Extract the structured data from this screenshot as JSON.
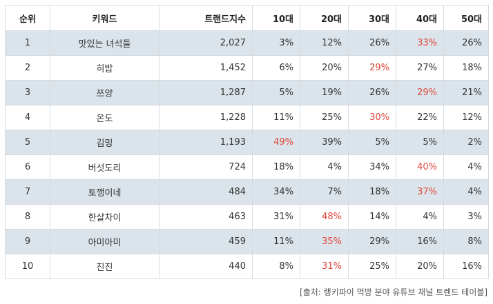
{
  "table": {
    "headers": [
      "순위",
      "키워드",
      "트랜드지수",
      "10대",
      "20대",
      "30대",
      "40대",
      "50대"
    ],
    "rows": [
      {
        "rank": "1",
        "keyword": "맛있는 녀석들",
        "index": "2,027",
        "a10": "3%",
        "a20": "12%",
        "a30": "26%",
        "a40": "33%",
        "a50": "26%",
        "highlight": "a40"
      },
      {
        "rank": "2",
        "keyword": "히밥",
        "index": "1,452",
        "a10": "6%",
        "a20": "20%",
        "a30": "29%",
        "a40": "27%",
        "a50": "18%",
        "highlight": "a30"
      },
      {
        "rank": "3",
        "keyword": "쯔양",
        "index": "1,287",
        "a10": "5%",
        "a20": "19%",
        "a30": "26%",
        "a40": "29%",
        "a50": "21%",
        "highlight": "a40"
      },
      {
        "rank": "4",
        "keyword": "온도",
        "index": "1,228",
        "a10": "11%",
        "a20": "25%",
        "a30": "30%",
        "a40": "22%",
        "a50": "12%",
        "highlight": "a30"
      },
      {
        "rank": "5",
        "keyword": "김밍",
        "index": "1,193",
        "a10": "49%",
        "a20": "39%",
        "a30": "5%",
        "a40": "5%",
        "a50": "2%",
        "highlight": "a10"
      },
      {
        "rank": "6",
        "keyword": "버섯도리",
        "index": "724",
        "a10": "18%",
        "a20": "4%",
        "a30": "34%",
        "a40": "40%",
        "a50": "4%",
        "highlight": "a40"
      },
      {
        "rank": "7",
        "keyword": "토깽이네",
        "index": "484",
        "a10": "34%",
        "a20": "7%",
        "a30": "18%",
        "a40": "37%",
        "a50": "4%",
        "highlight": "a40"
      },
      {
        "rank": "8",
        "keyword": "한살차이",
        "index": "463",
        "a10": "31%",
        "a20": "48%",
        "a30": "14%",
        "a40": "4%",
        "a50": "3%",
        "highlight": "a20"
      },
      {
        "rank": "9",
        "keyword": "아미아미",
        "index": "459",
        "a10": "11%",
        "a20": "35%",
        "a30": "29%",
        "a40": "16%",
        "a50": "8%",
        "highlight": "a20"
      },
      {
        "rank": "10",
        "keyword": "진진",
        "index": "440",
        "a10": "8%",
        "a20": "31%",
        "a30": "25%",
        "a40": "20%",
        "a50": "16%",
        "highlight": "a20"
      }
    ]
  },
  "source": "[출처: 랭키파이 먹방 분야 유튜브 채널 트렌드 테이블]",
  "colors": {
    "highlight": "#e0453a",
    "stripe": "#dbe4ea",
    "border": "#d6dbe0"
  }
}
